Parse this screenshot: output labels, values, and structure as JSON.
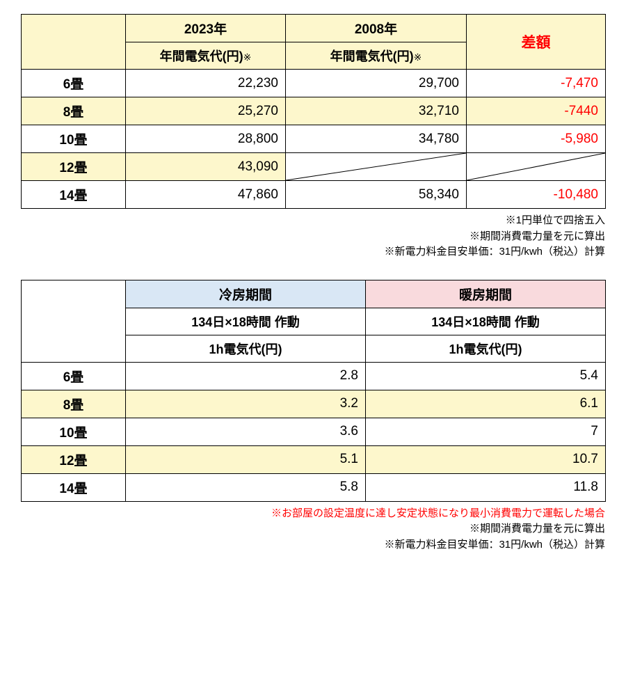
{
  "table1": {
    "hdr_2023": "2023年",
    "hdr_2008": "2008年",
    "hdr_diff": "差額",
    "sub_year_cost": "年間電気代(円)",
    "annot_mark": "※",
    "rows": [
      {
        "label": "6畳",
        "v2023": "22,230",
        "v2008": "29,700",
        "diff": "-7,470",
        "yellow": false,
        "slash2008": false,
        "slashDiff": false
      },
      {
        "label": "8畳",
        "v2023": "25,270",
        "v2008": "32,710",
        "diff": "-7440",
        "yellow": true,
        "slash2008": false,
        "slashDiff": false
      },
      {
        "label": "10畳",
        "v2023": "28,800",
        "v2008": "34,780",
        "diff": "-5,980",
        "yellow": false,
        "slash2008": false,
        "slashDiff": false
      },
      {
        "label": "12畳",
        "v2023": "43,090",
        "v2008": "",
        "diff": "",
        "yellow": true,
        "slash2008": true,
        "slashDiff": true
      },
      {
        "label": "14畳",
        "v2023": "47,860",
        "v2008": "58,340",
        "diff": "-10,480",
        "yellow": false,
        "slash2008": false,
        "slashDiff": false
      }
    ],
    "notes": [
      "※1円単位で四捨五入",
      "※期間消費電力量を元に算出",
      "※新電力料金目安単価：31円/kwh（税込）計算"
    ]
  },
  "table2": {
    "hdr_cool": "冷房期間",
    "hdr_heat": "暖房期間",
    "sub_period": "134日×18時間 作動",
    "sub_cost": "1h電気代(円)",
    "rows": [
      {
        "label": "6畳",
        "cool": "2.8",
        "heat": "5.4",
        "yellow": false
      },
      {
        "label": "8畳",
        "cool": "3.2",
        "heat": "6.1",
        "yellow": true
      },
      {
        "label": "10畳",
        "cool": "3.6",
        "heat": "7",
        "yellow": false
      },
      {
        "label": "12畳",
        "cool": "5.1",
        "heat": "10.7",
        "yellow": true
      },
      {
        "label": "14畳",
        "cool": "5.8",
        "heat": "11.8",
        "yellow": false
      }
    ],
    "notes_red": "※お部屋の設定温度に達し安定状態になり最小消費電力で運転した場合",
    "notes": [
      "※期間消費電力量を元に算出",
      "※新電力料金目安単価：31円/kwh（税込）計算"
    ]
  },
  "colors": {
    "yellow": "#fdf7cc",
    "blue": "#d9e7f5",
    "pink": "#f9dadd",
    "red": "#ff0000",
    "border": "#000000"
  }
}
